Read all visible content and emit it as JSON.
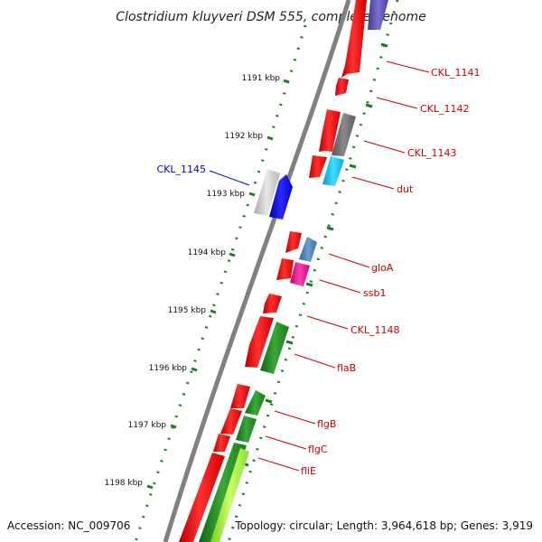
{
  "title": "Clostridium kluyveri DSM 555, complete genome",
  "footer": {
    "accession": "Accession: NC_009706",
    "topology": "Topology: circular; Length: 3,964,618 bp; Genes: 3,919"
  },
  "ticks": [
    "1191 kbp",
    "1192 kbp",
    "1193 kbp",
    "1194 kbp",
    "1195 kbp",
    "1196 kbp",
    "1197 kbp",
    "1198 kbp"
  ],
  "labels": [
    {
      "text": "CKL_1141",
      "color": "#cc0000"
    },
    {
      "text": "CKL_1142",
      "color": "#cc0000"
    },
    {
      "text": "CKL_1143",
      "color": "#cc0000"
    },
    {
      "text": "dut",
      "color": "#cc0000"
    },
    {
      "text": "CKL_1145",
      "color": "#0000cc"
    },
    {
      "text": "gloA",
      "color": "#cc0000"
    },
    {
      "text": "ssb1",
      "color": "#cc0000"
    },
    {
      "text": "CKL_1148",
      "color": "#cc0000"
    },
    {
      "text": "flaB",
      "color": "#cc0000"
    },
    {
      "text": "flgB",
      "color": "#cc0000"
    },
    {
      "text": "flgC",
      "color": "#cc0000"
    },
    {
      "text": "fliE",
      "color": "#cc0000"
    }
  ],
  "colors": {
    "cds": "#ff0000",
    "dark_gray": "#6e6e6e",
    "light_gray": "#c8c8c8",
    "blue": "#0000ee",
    "cyan": "#22ccff",
    "steel": "#4682b4",
    "magenta": "#ff1493",
    "green": "#228b22",
    "lime": "#99ff33",
    "purple": "#6a5acd",
    "backbone": "#808080",
    "tick": "#1e7d1e"
  }
}
